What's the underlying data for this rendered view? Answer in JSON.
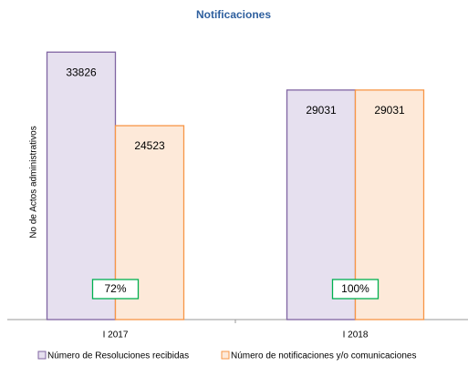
{
  "chart_data": {
    "type": "bar",
    "title": "Notificaciones",
    "y_label": "No de Actos administrativos",
    "categories": [
      "I 2017",
      "I 2018"
    ],
    "series": [
      {
        "name": "Número de Resoluciones recibidas",
        "fill": "#e6e0ef",
        "color": "#8064a2",
        "values": [
          33826,
          29031
        ]
      },
      {
        "name": "Número de notificaciones y/o comunicaciones",
        "fill": "#fde9d9",
        "color": "#f79646",
        "values": [
          24523,
          29031
        ]
      }
    ],
    "ylim": [
      0,
      38000
    ],
    "annotations": [
      "72%",
      "100%"
    ],
    "annotation_color": "#00b050"
  }
}
